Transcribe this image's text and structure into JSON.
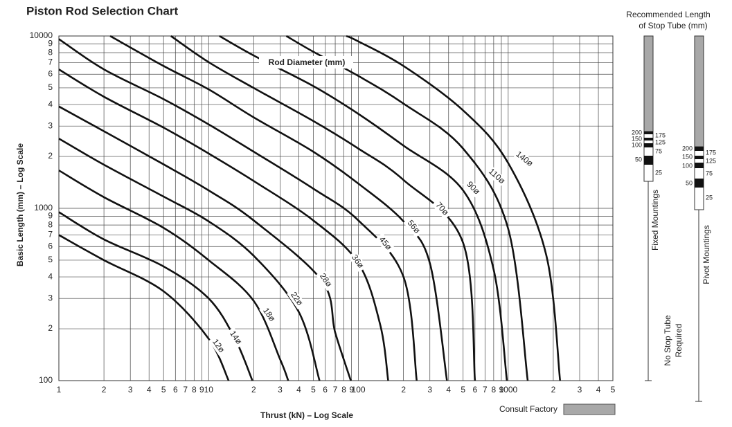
{
  "chart_data": {
    "type": "line",
    "title": "Piston Rod Selection Chart",
    "xlabel": "Thrust (kN) – Log Scale",
    "ylabel": "Basic Length (mm) – Log Scale",
    "annotation": "Rod Diameter (mm)",
    "xscale": "log",
    "yscale": "log",
    "grid": true,
    "xlim": [
      1,
      5000
    ],
    "ylim": [
      100,
      10000
    ],
    "xticks": [
      1,
      2,
      3,
      4,
      5,
      6,
      7,
      8,
      9,
      10,
      {
        "value": 20,
        "label": "2"
      },
      {
        "value": 30,
        "label": "3"
      },
      {
        "value": 40,
        "label": "4"
      },
      {
        "value": 50,
        "label": "5"
      },
      {
        "value": 60,
        "label": "6"
      },
      {
        "value": 70,
        "label": "7"
      },
      {
        "value": 80,
        "label": "8"
      },
      {
        "value": 90,
        "label": "9"
      },
      100,
      {
        "value": 200,
        "label": "2"
      },
      {
        "value": 300,
        "label": "3"
      },
      {
        "value": 400,
        "label": "4"
      },
      {
        "value": 500,
        "label": "5"
      },
      {
        "value": 600,
        "label": "6"
      },
      {
        "value": 700,
        "label": "7"
      },
      {
        "value": 800,
        "label": "8"
      },
      {
        "value": 900,
        "label": "9"
      },
      1000,
      {
        "value": 2000,
        "label": "2"
      },
      {
        "value": 3000,
        "label": "3"
      },
      {
        "value": 4000,
        "label": "4"
      },
      {
        "value": 5000,
        "label": "5"
      }
    ],
    "yticks": [
      100,
      {
        "value": 200,
        "label": "2"
      },
      {
        "value": 300,
        "label": "3"
      },
      {
        "value": 400,
        "label": "4"
      },
      {
        "value": 500,
        "label": "5"
      },
      {
        "value": 600,
        "label": "6"
      },
      {
        "value": 700,
        "label": "7"
      },
      {
        "value": 800,
        "label": "8"
      },
      {
        "value": 900,
        "label": "9"
      },
      1000,
      {
        "value": 2000,
        "label": "2"
      },
      {
        "value": 3000,
        "label": "3"
      },
      {
        "value": 4000,
        "label": "4"
      },
      {
        "value": 5000,
        "label": "5"
      },
      {
        "value": 6000,
        "label": "6"
      },
      {
        "value": 7000,
        "label": "7"
      },
      {
        "value": 8000,
        "label": "8"
      },
      {
        "value": 9000,
        "label": "9"
      },
      10000
    ],
    "series": [
      {
        "name": "12ø",
        "color": "#111",
        "x": [
          1,
          2,
          5,
          10,
          13.6
        ],
        "values": [
          700,
          500,
          330,
          175,
          100
        ]
      },
      {
        "name": "14ø",
        "color": "#111",
        "x": [
          1,
          2,
          5,
          10,
          15,
          19.6
        ],
        "values": [
          950,
          660,
          460,
          300,
          175,
          100
        ]
      },
      {
        "name": "18ø",
        "color": "#111",
        "x": [
          1,
          2,
          5,
          10,
          20,
          30,
          34
        ],
        "values": [
          1660,
          1160,
          770,
          500,
          290,
          133,
          100
        ]
      },
      {
        "name": "22ø",
        "color": "#111",
        "x": [
          1,
          2,
          5,
          10,
          20,
          40,
          55
        ],
        "values": [
          2540,
          1790,
          1170,
          840,
          530,
          250,
          100
        ]
      },
      {
        "name": "28ø",
        "color": "#111",
        "x": [
          1,
          2,
          5,
          10,
          20,
          57,
          70,
          89
        ],
        "values": [
          3900,
          2800,
          1800,
          1270,
          850,
          380,
          190,
          100
        ]
      },
      {
        "name": "36ø",
        "color": "#111",
        "x": [
          1,
          2,
          5,
          10,
          20,
          50,
          100,
          140,
          158
        ],
        "values": [
          6400,
          4440,
          2940,
          2080,
          1440,
          850,
          480,
          210,
          100
        ]
      },
      {
        "name": "45ø",
        "color": "#111",
        "x": [
          1,
          2,
          5,
          10,
          20,
          50,
          100,
          200,
          245
        ],
        "values": [
          9600,
          6400,
          4300,
          3070,
          2130,
          1300,
          850,
          400,
          100
        ]
      },
      {
        "name": "56ø",
        "color": "#111",
        "x": [
          2.2,
          5,
          10,
          20,
          50,
          100,
          200,
          300,
          390
        ],
        "values": [
          10000,
          6700,
          4900,
          3370,
          2130,
          1390,
          840,
          480,
          100
        ]
      },
      {
        "name": "70ø",
        "color": "#111",
        "x": [
          5.6,
          10,
          20,
          50,
          100,
          200,
          500,
          600
        ],
        "values": [
          10000,
          7050,
          4990,
          3210,
          2220,
          1460,
          630,
          100
        ]
      },
      {
        "name": "90ø",
        "color": "#111",
        "x": [
          11.8,
          20,
          50,
          100,
          200,
          500,
          800,
          980
        ],
        "values": [
          10000,
          7700,
          5120,
          3530,
          2310,
          1270,
          440,
          100
        ]
      },
      {
        "name": "110ø",
        "color": "#111",
        "x": [
          33,
          50,
          100,
          200,
          500,
          1000,
          1350
        ],
        "values": [
          10000,
          8100,
          5860,
          4050,
          2220,
          760,
          100
        ]
      },
      {
        "name": "140ø",
        "color": "#111",
        "x": [
          83,
          100,
          200,
          500,
          1000,
          1800,
          2220
        ],
        "values": [
          10000,
          9300,
          6700,
          3700,
          1830,
          530,
          100
        ]
      }
    ]
  },
  "stop_tube": {
    "title": [
      "Recommended  Length",
      "of Stop Tube (mm)"
    ],
    "fixed": {
      "label": "Fixed Mountings",
      "left": [
        "200",
        "150",
        "100",
        "50"
      ],
      "right": [
        "175",
        "125",
        "75",
        "25"
      ]
    },
    "pivot": {
      "label": "Pivot Mountings",
      "left": [
        "200",
        "150",
        "100",
        "50"
      ],
      "right": [
        "175",
        "125",
        "75",
        "25"
      ]
    },
    "no_stop_tube": [
      "No Stop Tube",
      "Required"
    ],
    "consult_factory": "Consult Factory"
  }
}
